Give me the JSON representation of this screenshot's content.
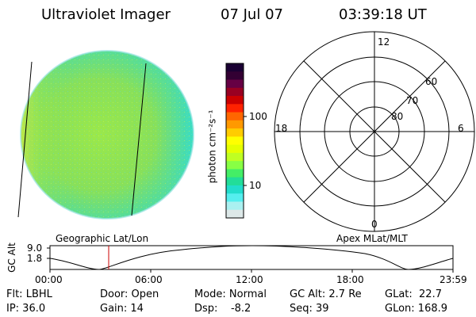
{
  "header": {
    "title": "Ultraviolet Imager",
    "date": "07 Jul 07",
    "time": "03:39:18 UT"
  },
  "colorbar": {
    "label": "photon cm⁻²s⁻¹",
    "ticks": [
      "100",
      "10"
    ],
    "colors": [
      "#1a0033",
      "#330033",
      "#660044",
      "#990022",
      "#cc0000",
      "#ff2200",
      "#ff6600",
      "#ff9900",
      "#ffcc00",
      "#ffff00",
      "#e5ff00",
      "#bfff22",
      "#88ff44",
      "#44ee66",
      "#22dd99",
      "#22ddcc",
      "#55eeee",
      "#aaf0f0",
      "#dde8e8"
    ]
  },
  "polar_plot": {
    "mlt_labels": [
      "12",
      "18",
      "6",
      "0"
    ],
    "lat_labels": [
      "60",
      "70",
      "80"
    ]
  },
  "strip": {
    "ylabel": "GC Alt",
    "yticks": [
      "9.0",
      "1.8"
    ],
    "left_title": "Geographic Lat/Lon",
    "right_title": "Apex MLat/MLT",
    "xticks": [
      "00:00",
      "06:00",
      "12:00",
      "18:00",
      "23:59"
    ]
  },
  "info": {
    "flt": "Flt: LBHL",
    "ip": "IP: 36.0",
    "door": "Door: Open",
    "gain": "Gain: 14",
    "mode": "Mode: Normal",
    "dsp": "Dsp:    -8.2",
    "gc_alt": "GC Alt: 2.7 Re",
    "seq": "Seq: 39",
    "glat": "GLat:  22.7",
    "glon": "GLon: 168.9"
  }
}
